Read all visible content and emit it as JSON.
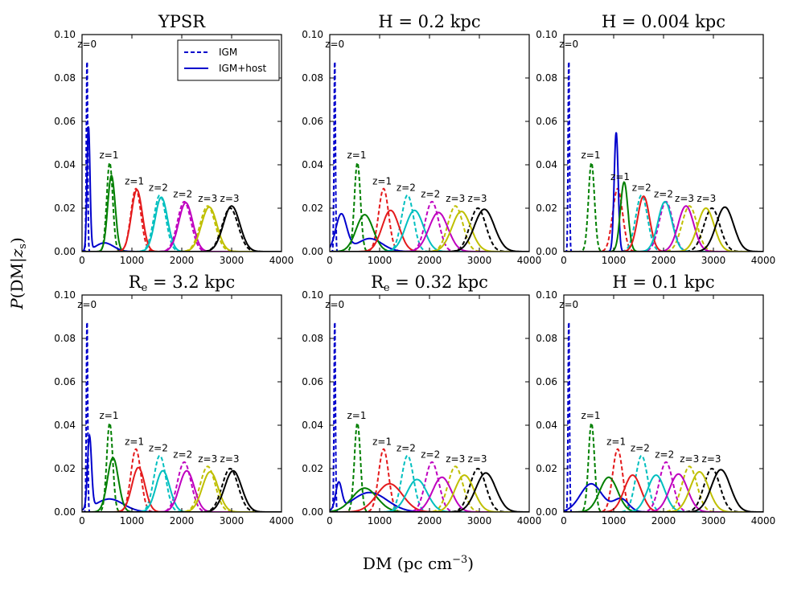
{
  "figure": {
    "ylabel": "P(DM|z_s)",
    "xlabel": "DM (pc cm^-3)"
  },
  "legend": {
    "items": [
      {
        "label": "IGM",
        "style": "dashed",
        "color": "#0000cc"
      },
      {
        "label": "IGM+host",
        "style": "solid",
        "color": "#0000cc"
      }
    ]
  },
  "colors": {
    "z0": "#0000cc",
    "z1": "#007f00",
    "z2": "#e41a1c",
    "z3": "#00bfbf",
    "z4": "#bf00bf",
    "z5": "#bfbf00",
    "z6": "#000000"
  },
  "chart_data": [
    {
      "title": "YPSR",
      "type": "line",
      "xlim": [
        0,
        4000
      ],
      "ylim": [
        0,
        0.1
      ],
      "xticks": [
        0,
        1000,
        2000,
        3000,
        4000
      ],
      "yticks": [
        "0.00",
        "0.02",
        "0.04",
        "0.06",
        "0.08",
        "0.10"
      ],
      "igm": [
        {
          "mu": 100,
          "sigma": 14,
          "peak": 0.091
        },
        {
          "mu": 555,
          "sigma": 60,
          "peak": 0.041
        },
        {
          "mu": 1080,
          "sigma": 100,
          "peak": 0.029
        },
        {
          "mu": 1560,
          "sigma": 120,
          "peak": 0.026
        },
        {
          "mu": 2050,
          "sigma": 135,
          "peak": 0.023
        },
        {
          "mu": 2520,
          "sigma": 150,
          "peak": 0.021
        },
        {
          "mu": 2970,
          "sigma": 160,
          "peak": 0.02
        }
      ],
      "host": [
        {
          "mu": 130,
          "sigma": 30,
          "peak": 0.057,
          "tail_peak": 0.004,
          "tail_mu": 450,
          "tail_sigma": 180
        },
        {
          "mu": 590,
          "sigma": 75,
          "peak": 0.035
        },
        {
          "mu": 1100,
          "sigma": 110,
          "peak": 0.0285
        },
        {
          "mu": 1590,
          "sigma": 125,
          "peak": 0.025
        },
        {
          "mu": 2080,
          "sigma": 140,
          "peak": 0.0225
        },
        {
          "mu": 2550,
          "sigma": 155,
          "peak": 0.0205
        },
        {
          "mu": 3000,
          "sigma": 165,
          "peak": 0.021
        }
      ],
      "annotations": [
        {
          "text": "z=0",
          "x": 100,
          "y": 0.094
        },
        {
          "text": "z=1",
          "x": 540,
          "y": 0.043
        },
        {
          "text": "z=1",
          "x": 1050,
          "y": 0.031
        },
        {
          "text": "z=2",
          "x": 1530,
          "y": 0.028
        },
        {
          "text": "z=2",
          "x": 2020,
          "y": 0.025
        },
        {
          "text": "z=3",
          "x": 2520,
          "y": 0.023
        },
        {
          "text": "z=3",
          "x": 2960,
          "y": 0.023
        }
      ]
    },
    {
      "title": "H = 0.2 kpc",
      "type": "line",
      "xlim": [
        0,
        4000
      ],
      "ylim": [
        0,
        0.1
      ],
      "xticks": [
        0,
        1000,
        2000,
        3000,
        4000
      ],
      "yticks": [
        "0.00",
        "0.02",
        "0.04",
        "0.06",
        "0.08",
        "0.10"
      ],
      "igm": [
        {
          "mu": 100,
          "sigma": 14,
          "peak": 0.091
        },
        {
          "mu": 555,
          "sigma": 60,
          "peak": 0.041
        },
        {
          "mu": 1080,
          "sigma": 100,
          "peak": 0.029
        },
        {
          "mu": 1560,
          "sigma": 120,
          "peak": 0.026
        },
        {
          "mu": 2050,
          "sigma": 135,
          "peak": 0.023
        },
        {
          "mu": 2520,
          "sigma": 150,
          "peak": 0.021
        },
        {
          "mu": 2970,
          "sigma": 160,
          "peak": 0.02
        }
      ],
      "host": [
        {
          "mu": 230,
          "sigma": 110,
          "peak": 0.017,
          "tail_peak": 0.006,
          "tail_mu": 800,
          "tail_sigma": 250
        },
        {
          "mu": 700,
          "sigma": 170,
          "peak": 0.017
        },
        {
          "mu": 1220,
          "sigma": 170,
          "peak": 0.019
        },
        {
          "mu": 1700,
          "sigma": 180,
          "peak": 0.019
        },
        {
          "mu": 2180,
          "sigma": 190,
          "peak": 0.018
        },
        {
          "mu": 2640,
          "sigma": 190,
          "peak": 0.0185
        },
        {
          "mu": 3100,
          "sigma": 200,
          "peak": 0.0195
        }
      ],
      "annotations": [
        {
          "text": "z=0",
          "x": 100,
          "y": 0.094
        },
        {
          "text": "z=1",
          "x": 540,
          "y": 0.043
        },
        {
          "text": "z=1",
          "x": 1050,
          "y": 0.031
        },
        {
          "text": "z=2",
          "x": 1530,
          "y": 0.028
        },
        {
          "text": "z=2",
          "x": 2020,
          "y": 0.025
        },
        {
          "text": "z=3",
          "x": 2520,
          "y": 0.023
        },
        {
          "text": "z=3",
          "x": 2960,
          "y": 0.023
        }
      ]
    },
    {
      "title": "H = 0.004 kpc",
      "type": "line",
      "xlim": [
        0,
        4000
      ],
      "ylim": [
        0,
        0.1
      ],
      "xticks": [
        0,
        1000,
        2000,
        3000,
        4000
      ],
      "yticks": [
        "0.00",
        "0.02",
        "0.04",
        "0.06",
        "0.08",
        "0.10"
      ],
      "igm": [
        {
          "mu": 100,
          "sigma": 14,
          "peak": 0.091
        },
        {
          "mu": 555,
          "sigma": 60,
          "peak": 0.041
        },
        {
          "mu": 1080,
          "sigma": 100,
          "peak": 0.029
        },
        {
          "mu": 1560,
          "sigma": 120,
          "peak": 0.026
        },
        {
          "mu": 2050,
          "sigma": 135,
          "peak": 0.023
        },
        {
          "mu": 2520,
          "sigma": 150,
          "peak": 0.021
        },
        {
          "mu": 2970,
          "sigma": 160,
          "peak": 0.02
        }
      ],
      "host": [
        {
          "mu": 1050,
          "sigma": 40,
          "peak": 0.055
        },
        {
          "mu": 1210,
          "sigma": 75,
          "peak": 0.032
        },
        {
          "mu": 1600,
          "sigma": 120,
          "peak": 0.0255
        },
        {
          "mu": 2030,
          "sigma": 140,
          "peak": 0.023
        },
        {
          "mu": 2450,
          "sigma": 155,
          "peak": 0.021
        },
        {
          "mu": 2850,
          "sigma": 165,
          "peak": 0.02
        },
        {
          "mu": 3230,
          "sigma": 175,
          "peak": 0.0205
        }
      ],
      "annotations": [
        {
          "text": "z=0",
          "x": 100,
          "y": 0.094
        },
        {
          "text": "z=1",
          "x": 540,
          "y": 0.043
        },
        {
          "text": "z=1",
          "x": 1130,
          "y": 0.033
        },
        {
          "text": "z=2",
          "x": 1560,
          "y": 0.028
        },
        {
          "text": "z=2",
          "x": 2000,
          "y": 0.025
        },
        {
          "text": "z=3",
          "x": 2420,
          "y": 0.023
        },
        {
          "text": "z=3",
          "x": 2860,
          "y": 0.023
        }
      ]
    },
    {
      "title": "R_e = 3.2 kpc",
      "type": "line",
      "xlim": [
        0,
        4000
      ],
      "ylim": [
        0,
        0.1
      ],
      "xticks": [
        0,
        1000,
        2000,
        3000,
        4000
      ],
      "yticks": [
        "0.00",
        "0.02",
        "0.04",
        "0.06",
        "0.08",
        "0.10"
      ],
      "igm": [
        {
          "mu": 100,
          "sigma": 14,
          "peak": 0.091
        },
        {
          "mu": 555,
          "sigma": 60,
          "peak": 0.041
        },
        {
          "mu": 1080,
          "sigma": 100,
          "peak": 0.029
        },
        {
          "mu": 1560,
          "sigma": 120,
          "peak": 0.026
        },
        {
          "mu": 2050,
          "sigma": 135,
          "peak": 0.023
        },
        {
          "mu": 2520,
          "sigma": 150,
          "peak": 0.021
        },
        {
          "mu": 2970,
          "sigma": 160,
          "peak": 0.02
        }
      ],
      "host": [
        {
          "mu": 150,
          "sigma": 40,
          "peak": 0.033,
          "tail_peak": 0.006,
          "tail_mu": 550,
          "tail_sigma": 280
        },
        {
          "mu": 620,
          "sigma": 110,
          "peak": 0.025
        },
        {
          "mu": 1130,
          "sigma": 130,
          "peak": 0.0205
        },
        {
          "mu": 1620,
          "sigma": 140,
          "peak": 0.019
        },
        {
          "mu": 2100,
          "sigma": 150,
          "peak": 0.019
        },
        {
          "mu": 2570,
          "sigma": 160,
          "peak": 0.0185
        },
        {
          "mu": 3030,
          "sigma": 170,
          "peak": 0.019
        }
      ],
      "annotations": [
        {
          "text": "z=0",
          "x": 100,
          "y": 0.094
        },
        {
          "text": "z=1",
          "x": 540,
          "y": 0.043
        },
        {
          "text": "z=1",
          "x": 1050,
          "y": 0.031
        },
        {
          "text": "z=2",
          "x": 1530,
          "y": 0.028
        },
        {
          "text": "z=2",
          "x": 2020,
          "y": 0.025
        },
        {
          "text": "z=3",
          "x": 2520,
          "y": 0.023
        },
        {
          "text": "z=3",
          "x": 2960,
          "y": 0.023
        }
      ]
    },
    {
      "title": "R_e = 0.32 kpc",
      "type": "line",
      "xlim": [
        0,
        4000
      ],
      "ylim": [
        0,
        0.1
      ],
      "xticks": [
        0,
        1000,
        2000,
        3000,
        4000
      ],
      "yticks": [
        "0.00",
        "0.02",
        "0.04",
        "0.06",
        "0.08",
        "0.10"
      ],
      "igm": [
        {
          "mu": 100,
          "sigma": 14,
          "peak": 0.091
        },
        {
          "mu": 555,
          "sigma": 60,
          "peak": 0.041
        },
        {
          "mu": 1080,
          "sigma": 100,
          "peak": 0.029
        },
        {
          "mu": 1560,
          "sigma": 120,
          "peak": 0.026
        },
        {
          "mu": 2050,
          "sigma": 135,
          "peak": 0.023
        },
        {
          "mu": 2520,
          "sigma": 150,
          "peak": 0.021
        },
        {
          "mu": 2970,
          "sigma": 160,
          "peak": 0.02
        }
      ],
      "host": [
        {
          "mu": 180,
          "sigma": 60,
          "peak": 0.012,
          "tail_peak": 0.009,
          "tail_mu": 800,
          "tail_sigma": 350
        },
        {
          "mu": 700,
          "sigma": 250,
          "peak": 0.011
        },
        {
          "mu": 1200,
          "sigma": 260,
          "peak": 0.013
        },
        {
          "mu": 1750,
          "sigma": 200,
          "peak": 0.015
        },
        {
          "mu": 2250,
          "sigma": 190,
          "peak": 0.016
        },
        {
          "mu": 2700,
          "sigma": 190,
          "peak": 0.017
        },
        {
          "mu": 3130,
          "sigma": 200,
          "peak": 0.018
        }
      ],
      "annotations": [
        {
          "text": "z=0",
          "x": 100,
          "y": 0.094
        },
        {
          "text": "z=1",
          "x": 540,
          "y": 0.043
        },
        {
          "text": "z=1",
          "x": 1050,
          "y": 0.031
        },
        {
          "text": "z=2",
          "x": 1530,
          "y": 0.028
        },
        {
          "text": "z=2",
          "x": 2020,
          "y": 0.025
        },
        {
          "text": "z=3",
          "x": 2520,
          "y": 0.023
        },
        {
          "text": "z=3",
          "x": 2960,
          "y": 0.023
        }
      ]
    },
    {
      "title": "H = 0.1 kpc",
      "type": "line",
      "xlim": [
        0,
        4000
      ],
      "ylim": [
        0,
        0.1
      ],
      "xticks": [
        0,
        1000,
        2000,
        3000,
        4000
      ],
      "yticks": [
        "0.00",
        "0.02",
        "0.04",
        "0.06",
        "0.08",
        "0.10"
      ],
      "igm": [
        {
          "mu": 100,
          "sigma": 14,
          "peak": 0.091
        },
        {
          "mu": 555,
          "sigma": 60,
          "peak": 0.041
        },
        {
          "mu": 1080,
          "sigma": 100,
          "peak": 0.029
        },
        {
          "mu": 1560,
          "sigma": 120,
          "peak": 0.026
        },
        {
          "mu": 2050,
          "sigma": 135,
          "peak": 0.023
        },
        {
          "mu": 2520,
          "sigma": 150,
          "peak": 0.021
        },
        {
          "mu": 2970,
          "sigma": 160,
          "peak": 0.02
        }
      ],
      "host": [
        {
          "mu": 550,
          "sigma": 220,
          "peak": 0.013,
          "tail_peak": 0.006,
          "tail_mu": 1150,
          "tail_sigma": 150
        },
        {
          "mu": 900,
          "sigma": 180,
          "peak": 0.016
        },
        {
          "mu": 1380,
          "sigma": 170,
          "peak": 0.017
        },
        {
          "mu": 1850,
          "sigma": 170,
          "peak": 0.017
        },
        {
          "mu": 2300,
          "sigma": 180,
          "peak": 0.0175
        },
        {
          "mu": 2720,
          "sigma": 185,
          "peak": 0.0185
        },
        {
          "mu": 3150,
          "sigma": 190,
          "peak": 0.0195
        }
      ],
      "annotations": [
        {
          "text": "z=0",
          "x": 100,
          "y": 0.094
        },
        {
          "text": "z=1",
          "x": 540,
          "y": 0.043
        },
        {
          "text": "z=1",
          "x": 1050,
          "y": 0.031
        },
        {
          "text": "z=2",
          "x": 1530,
          "y": 0.028
        },
        {
          "text": "z=2",
          "x": 2020,
          "y": 0.025
        },
        {
          "text": "z=3",
          "x": 2520,
          "y": 0.023
        },
        {
          "text": "z=3",
          "x": 2960,
          "y": 0.023
        }
      ]
    }
  ]
}
